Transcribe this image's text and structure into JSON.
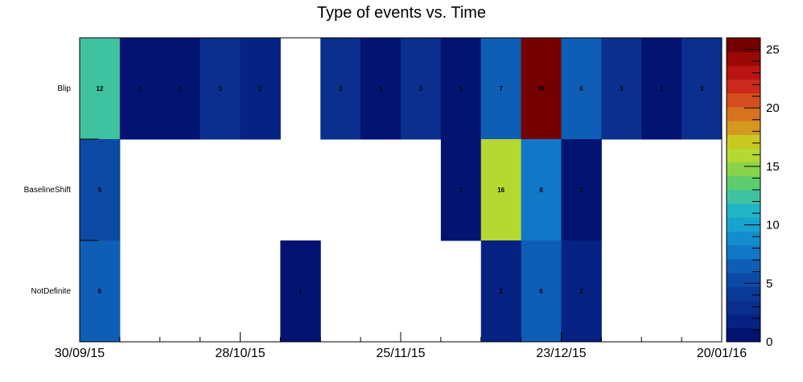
{
  "chart_data": {
    "type": "heatmap",
    "title": "Type of events vs. Time",
    "xlabel": "",
    "ylabel": "",
    "x_tick_labels": [
      "30/09/15",
      "28/10/15",
      "25/11/15",
      "23/12/15",
      "20/01/16"
    ],
    "num_time_bins": 16,
    "rows": [
      {
        "name": "Blip",
        "values": [
          12,
          1,
          1,
          3,
          2,
          null,
          3,
          1,
          3,
          1,
          7,
          26,
          6,
          3,
          1,
          3
        ]
      },
      {
        "name": "BaselineShift",
        "values": [
          5,
          null,
          null,
          null,
          null,
          null,
          null,
          null,
          null,
          1,
          16,
          8,
          1,
          null,
          null,
          null
        ]
      },
      {
        "name": "NotDefinite",
        "values": [
          6,
          null,
          null,
          null,
          null,
          1,
          null,
          null,
          null,
          null,
          2,
          6,
          2,
          null,
          null,
          null
        ]
      }
    ],
    "zlim": [
      0,
      26
    ],
    "colorbar_ticks": [
      "0",
      "5",
      "10",
      "15",
      "20",
      "25"
    ],
    "colormap": [
      "#021372",
      "#062283",
      "#0a2f8f",
      "#0c3a99",
      "#0d4aa6",
      "#0f5eb6",
      "#1177c7",
      "#148dcf",
      "#18a3cf",
      "#20b6c8",
      "#3fc2a0",
      "#5ccc6f",
      "#88d34b",
      "#b5d832",
      "#c9c820",
      "#d39a1f",
      "#d7731f",
      "#d44f1f",
      "#cc2a1c",
      "#bb1414",
      "#9a0808",
      "#760000"
    ]
  }
}
